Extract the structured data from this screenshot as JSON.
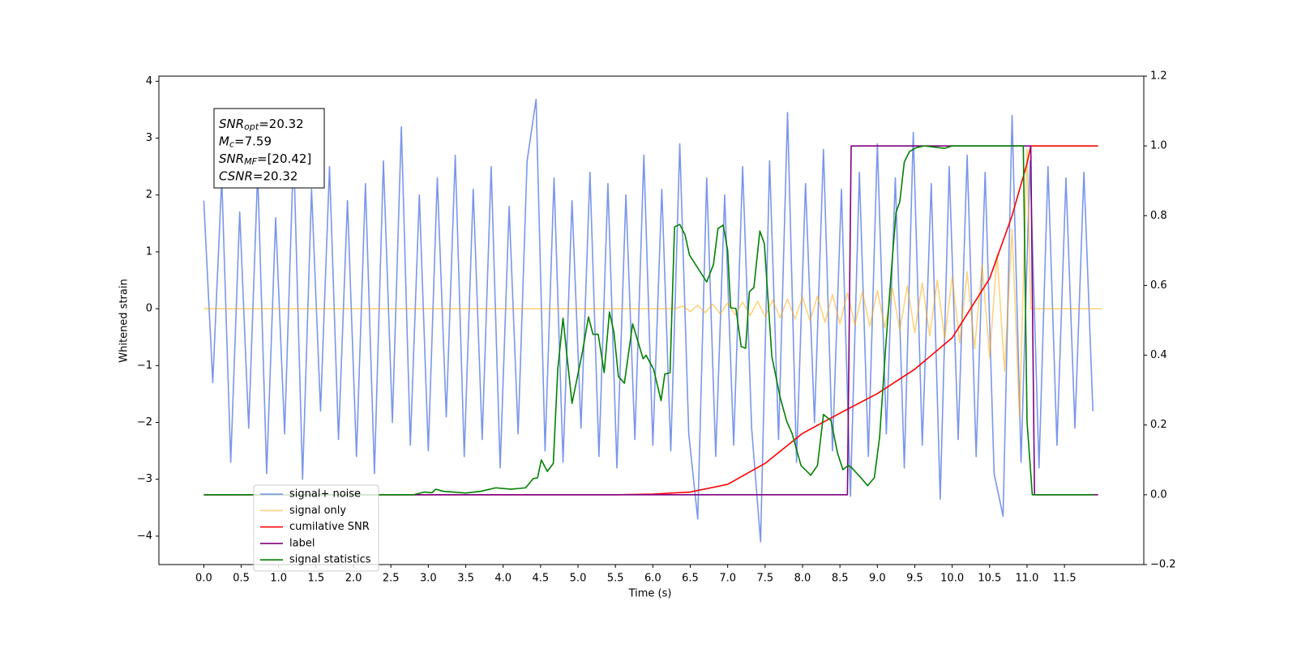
{
  "chart_data": {
    "type": "line",
    "xlabel": "Time (s)",
    "ylabel": "Whitened strain",
    "xlim": [
      -0.6,
      12.56
    ],
    "ylim": [
      -4.5,
      4.09
    ],
    "y2lim": [
      -0.2,
      1.2
    ],
    "xticks": [
      {
        "value": 0,
        "label": "0.0"
      },
      0.5,
      {
        "value": 1,
        "label": "1.0"
      },
      1.5,
      {
        "value": 2,
        "label": "2.0"
      },
      2.5,
      {
        "value": 3,
        "label": "3.0"
      },
      3.5,
      {
        "value": 4,
        "label": "4.0"
      },
      4.5,
      {
        "value": 5,
        "label": "5.0"
      },
      5.5,
      {
        "value": 6,
        "label": "6.0"
      },
      6.5,
      {
        "value": 7,
        "label": "7.0"
      },
      7.5,
      {
        "value": 8,
        "label": "8.0"
      },
      8.5,
      {
        "value": 9,
        "label": "9.0"
      },
      9.5,
      {
        "value": 10,
        "label": "10.0"
      },
      10.5,
      {
        "value": 11,
        "label": "11.0"
      },
      11.5
    ],
    "yticks": [
      {
        "value": -4,
        "label": "−4"
      },
      {
        "value": -3,
        "label": "−3"
      },
      {
        "value": -2,
        "label": "−2"
      },
      {
        "value": -1,
        "label": "−1"
      },
      0,
      1,
      2,
      3,
      4
    ],
    "y2ticks": [
      {
        "value": -0.2,
        "label": "−0.2"
      },
      {
        "value": 0,
        "label": "0.0"
      },
      0.2,
      0.4,
      0.6,
      0.8,
      {
        "value": 1,
        "label": "1.0"
      },
      1.2
    ],
    "legend": "lower left",
    "annotation": [
      {
        "main": "SNR",
        "sub": "opt",
        "rest": "=20.32"
      },
      {
        "main": "M",
        "sub": "c",
        "rest": "=7.59"
      },
      {
        "main": "SNR",
        "sub": "MF",
        "rest": "=[20.42]"
      },
      {
        "main": "CSNR",
        "sub": "",
        "rest": "=20.32"
      }
    ],
    "series": [
      {
        "name": "signal+ noise",
        "color": "#4169e1",
        "alpha": 0.7,
        "x": [
          0,
          0.12,
          0.24,
          0.36,
          0.48,
          0.6,
          0.72,
          0.84,
          0.96,
          1.08,
          1.2,
          1.32,
          1.44,
          1.56,
          1.68,
          1.8,
          1.92,
          2.04,
          2.16,
          2.28,
          2.4,
          2.52,
          2.64,
          2.76,
          2.88,
          3,
          3.12,
          3.24,
          3.36,
          3.48,
          3.6,
          3.72,
          3.84,
          3.96,
          4.08,
          4.2,
          4.32,
          4.44,
          4.56,
          4.68,
          4.8,
          4.92,
          5.04,
          5.16,
          5.28,
          5.4,
          5.52,
          5.64,
          5.76,
          5.88,
          6,
          6.12,
          6.24,
          6.36,
          6.48,
          6.6,
          6.72,
          6.84,
          6.96,
          7.08,
          7.2,
          7.32,
          7.44,
          7.56,
          7.68,
          7.8,
          7.92,
          8.04,
          8.16,
          8.28,
          8.4,
          8.52,
          8.64,
          8.76,
          8.88,
          9,
          9.12,
          9.24,
          9.36,
          9.48,
          9.6,
          9.72,
          9.84,
          9.96,
          10.08,
          10.2,
          10.32,
          10.44,
          10.56,
          10.68,
          10.8,
          10.92,
          11.04,
          11.16,
          11.28,
          11.4,
          11.52,
          11.64,
          11.76,
          11.88
        ],
        "values": [
          1.9,
          -1.3,
          2.3,
          -2.7,
          1.7,
          -2.1,
          2.4,
          -2.9,
          1.6,
          -2.2,
          2.8,
          -3.0,
          2.1,
          -1.8,
          2.5,
          -2.3,
          1.9,
          -2.6,
          2.2,
          -2.9,
          2.6,
          -2.0,
          3.2,
          -2.4,
          2.0,
          -2.5,
          2.3,
          -1.9,
          2.7,
          -2.6,
          2.1,
          -2.3,
          2.5,
          -2.8,
          1.8,
          -2.2,
          2.6,
          3.68,
          -2.5,
          2.3,
          -2.7,
          1.9,
          -2.1,
          2.4,
          -2.6,
          2.2,
          -2.8,
          2.0,
          -2.3,
          2.7,
          -2.4,
          2.1,
          -2.5,
          2.9,
          -2.2,
          -3.7,
          2.3,
          -2.6,
          2.0,
          -2.4,
          2.5,
          -2.1,
          -4.1,
          2.6,
          -2.3,
          3.45,
          -2.7,
          2.2,
          -2.0,
          2.8,
          -2.5,
          2.1,
          -3.3,
          2.4,
          -2.6,
          2.9,
          -2.2,
          2.3,
          -2.8,
          3.1,
          -2.4,
          2.2,
          -3.35,
          2.5,
          -2.3,
          2.7,
          -2.6,
          2.4,
          -2.9,
          -3.65,
          3.4,
          -2.7,
          2.6,
          -2.8,
          2.5,
          -2.4,
          2.3,
          -2.1,
          2.4,
          -1.8
        ]
      },
      {
        "name": "signal only",
        "color": "#ffa500",
        "alpha": 0.5,
        "x": [
          0,
          6.3,
          6.4,
          6.5,
          6.6,
          6.7,
          6.8,
          6.9,
          7.0,
          7.1,
          7.2,
          7.3,
          7.4,
          7.5,
          7.6,
          7.7,
          7.8,
          7.9,
          8.0,
          8.1,
          8.2,
          8.3,
          8.4,
          8.5,
          8.6,
          8.7,
          8.8,
          8.9,
          9.0,
          9.1,
          9.2,
          9.3,
          9.4,
          9.5,
          9.6,
          9.7,
          9.8,
          9.9,
          10.0,
          10.1,
          10.2,
          10.3,
          10.4,
          10.5,
          10.6,
          10.7,
          10.8,
          10.9,
          11.0,
          11.05,
          12.0
        ],
        "values": [
          0,
          0,
          0.05,
          -0.05,
          0.06,
          -0.07,
          0.08,
          -0.09,
          0.1,
          -0.11,
          0.12,
          -0.12,
          0.13,
          -0.14,
          0.15,
          -0.16,
          0.17,
          -0.18,
          0.2,
          -0.21,
          0.22,
          -0.24,
          0.25,
          -0.27,
          0.28,
          -0.29,
          0.3,
          -0.31,
          0.32,
          -0.34,
          0.36,
          -0.38,
          0.4,
          -0.42,
          0.45,
          -0.48,
          0.5,
          -0.53,
          0.56,
          -0.6,
          0.65,
          -0.7,
          0.77,
          -0.85,
          0.95,
          -1.1,
          1.4,
          -1.9,
          2.8,
          0,
          0
        ]
      },
      {
        "name": "cumilative SNR",
        "color": "#ff0000",
        "axis": "y2",
        "x": [
          0,
          5.5,
          6,
          6.5,
          7,
          7.5,
          8,
          8.5,
          9,
          9.5,
          10,
          10.5,
          10.8,
          11,
          11.05,
          11.95
        ],
        "values": [
          0,
          0,
          0.002,
          0.008,
          0.03,
          0.09,
          0.176,
          0.234,
          0.29,
          0.36,
          0.45,
          0.62,
          0.8,
          0.95,
          1.0,
          1.0
        ]
      },
      {
        "name": "label",
        "color": "#800080",
        "axis": "y2",
        "x": [
          0,
          8.6,
          8.65,
          11.05,
          11.1,
          11.95
        ],
        "values": [
          0,
          0,
          1,
          1,
          0,
          0
        ]
      },
      {
        "name": "signal statistics",
        "color": "#008000",
        "axis": "y2",
        "x": [
          0,
          2.8,
          2.95,
          3.05,
          3.1,
          3.2,
          3.5,
          3.7,
          3.9,
          4.1,
          4.3,
          4.4,
          4.46,
          4.51,
          4.59,
          4.67,
          4.73,
          4.8,
          4.92,
          5.06,
          5.14,
          5.2,
          5.27,
          5.35,
          5.42,
          5.48,
          5.54,
          5.62,
          5.73,
          5.87,
          5.91,
          6.01,
          6.11,
          6.16,
          6.23,
          6.29,
          6.36,
          6.43,
          6.49,
          6.72,
          6.81,
          6.87,
          6.94,
          7.0,
          7.04,
          7.11,
          7.18,
          7.24,
          7.29,
          7.35,
          7.43,
          7.49,
          7.59,
          7.7,
          7.79,
          7.86,
          7.98,
          8.11,
          8.2,
          8.28,
          8.38,
          8.47,
          8.54,
          8.61,
          8.65,
          8.78,
          8.87,
          8.96,
          9.03,
          9.11,
          9.19,
          9.25,
          9.3,
          9.36,
          9.43,
          9.52,
          9.63,
          9.9,
          10.0,
          10.95,
          11.0,
          11.07,
          11.9
        ],
        "values": [
          0,
          0,
          0.008,
          0.006,
          0.016,
          0.01,
          0.005,
          0.01,
          0.02,
          0.016,
          0.02,
          0.046,
          0.049,
          0.1,
          0.067,
          0.09,
          0.36,
          0.506,
          0.262,
          0.41,
          0.51,
          0.46,
          0.46,
          0.35,
          0.524,
          0.466,
          0.339,
          0.32,
          0.49,
          0.39,
          0.4,
          0.36,
          0.27,
          0.346,
          0.35,
          0.768,
          0.775,
          0.745,
          0.687,
          0.61,
          0.66,
          0.763,
          0.773,
          0.7,
          0.536,
          0.534,
          0.425,
          0.42,
          0.582,
          0.594,
          0.756,
          0.72,
          0.397,
          0.28,
          0.21,
          0.176,
          0.084,
          0.056,
          0.084,
          0.23,
          0.213,
          0.118,
          0.072,
          0.084,
          0.079,
          0.049,
          0.026,
          0.049,
          0.165,
          0.42,
          0.65,
          0.81,
          0.84,
          0.954,
          0.984,
          0.995,
          1.0,
          0.993,
          1.0,
          1.0,
          0.21,
          0,
          0
        ]
      }
    ]
  }
}
